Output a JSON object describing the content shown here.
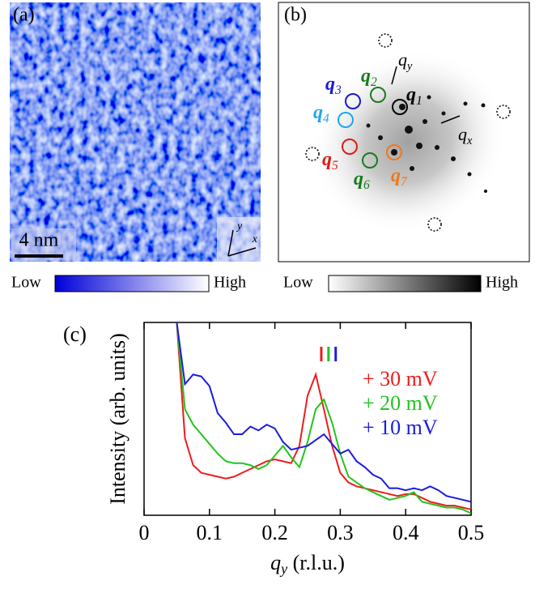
{
  "panel_a": {
    "label": "(a)",
    "scale_bar": "4 nm",
    "axis_x": "x",
    "axis_y": "y",
    "colorbar": {
      "low": "Low",
      "high": "High"
    }
  },
  "panel_b": {
    "label": "(b)",
    "colorbar": {
      "low": "Low",
      "high": "High"
    },
    "q_labels": [
      {
        "text": "q",
        "subscript": "1",
        "color": "#000000"
      },
      {
        "text": "q",
        "subscript": "2",
        "color": "#1a7a1a"
      },
      {
        "text": "q",
        "subscript": "3",
        "color": "#1a1ad0"
      },
      {
        "text": "q",
        "subscript": "4",
        "color": "#1ea8e8"
      },
      {
        "text": "q",
        "subscript": "5",
        "color": "#e01818"
      },
      {
        "text": "q",
        "subscript": "6",
        "color": "#1a7a1a"
      },
      {
        "text": "q",
        "subscript": "7",
        "color": "#f07818"
      }
    ],
    "qx": {
      "text": "q",
      "subscript": "x"
    },
    "qy": {
      "text": "q",
      "subscript": "y"
    }
  },
  "chart_data": {
    "type": "line",
    "panel_label": "(c)",
    "x_label": {
      "text": "q",
      "subscript": "y",
      "unit": " (r.l.u.)"
    },
    "y_label": "Intensity (arb. units)",
    "x": [
      0.05,
      0.0625,
      0.075,
      0.0875,
      0.1,
      0.1125,
      0.125,
      0.1375,
      0.15,
      0.1625,
      0.175,
      0.1875,
      0.2,
      0.2125,
      0.225,
      0.2375,
      0.25,
      0.2625,
      0.275,
      0.2875,
      0.3,
      0.3125,
      0.325,
      0.3375,
      0.35,
      0.3625,
      0.375,
      0.3875,
      0.4,
      0.4125,
      0.425,
      0.4375,
      0.45,
      0.4625,
      0.475,
      0.4875,
      0.5
    ],
    "series": [
      {
        "name": "+ 30 mV",
        "color": "#ee1c1c",
        "values": [
          1.0,
          0.4,
          0.26,
          0.22,
          0.21,
          0.2,
          0.19,
          0.2,
          0.22,
          0.24,
          0.26,
          0.28,
          0.29,
          0.28,
          0.27,
          0.36,
          0.62,
          0.73,
          0.55,
          0.36,
          0.22,
          0.17,
          0.15,
          0.14,
          0.13,
          0.12,
          0.11,
          0.1,
          0.11,
          0.11,
          0.09,
          0.07,
          0.06,
          0.05,
          0.05,
          0.04,
          0.03
        ]
      },
      {
        "name": "+ 20 mV",
        "color": "#22c41c",
        "values": [
          1.0,
          0.55,
          0.47,
          0.42,
          0.37,
          0.32,
          0.28,
          0.27,
          0.27,
          0.26,
          0.24,
          0.26,
          0.31,
          0.36,
          0.3,
          0.25,
          0.38,
          0.55,
          0.6,
          0.48,
          0.32,
          0.2,
          0.17,
          0.14,
          0.12,
          0.1,
          0.08,
          0.09,
          0.1,
          0.12,
          0.07,
          0.06,
          0.05,
          0.04,
          0.04,
          0.03,
          0.01
        ]
      },
      {
        "name": "+ 10 mV",
        "color": "#1c1cdc",
        "values": [
          1.0,
          0.68,
          0.73,
          0.72,
          0.67,
          0.53,
          0.48,
          0.42,
          0.42,
          0.46,
          0.44,
          0.47,
          0.45,
          0.38,
          0.34,
          0.35,
          0.36,
          0.39,
          0.42,
          0.37,
          0.32,
          0.34,
          0.28,
          0.25,
          0.21,
          0.19,
          0.14,
          0.14,
          0.13,
          0.14,
          0.13,
          0.15,
          0.13,
          0.1,
          0.09,
          0.08,
          0.07
        ]
      }
    ],
    "peak_markers": [
      {
        "x": 0.271,
        "color": "#ee1c1c"
      },
      {
        "x": 0.282,
        "color": "#22c41c"
      },
      {
        "x": 0.293,
        "color": "#1c1cdc"
      }
    ],
    "xlim": [
      0,
      0.5
    ],
    "xticks": [
      0,
      0.1,
      0.2,
      0.3,
      0.4,
      0.5
    ],
    "ylim": [
      0,
      1
    ]
  }
}
